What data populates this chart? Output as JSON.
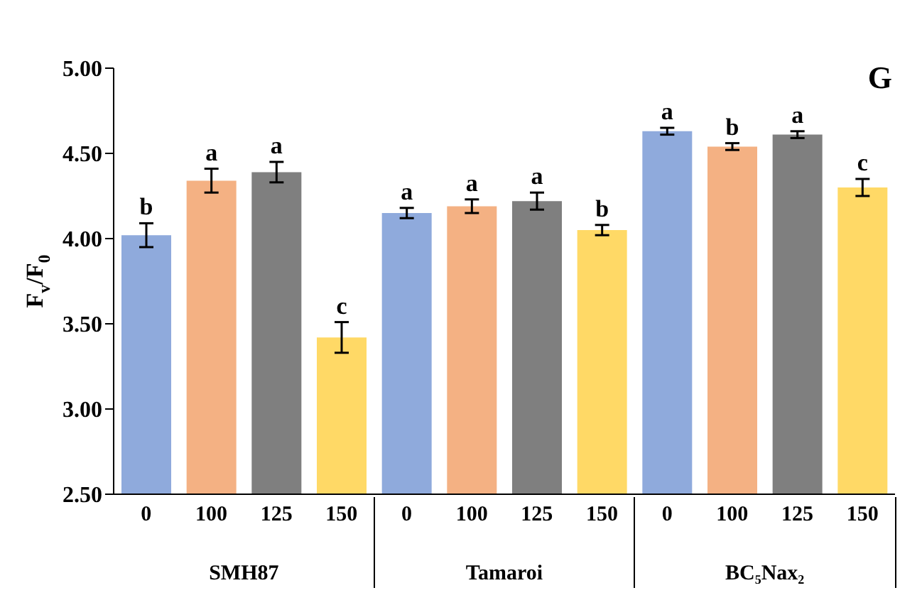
{
  "chart_data": {
    "type": "bar",
    "title": "G",
    "ylabel": "F$_{v}$/F$_{0}$",
    "categories": [
      "0",
      "100",
      "125",
      "150",
      "0",
      "100",
      "125",
      "150",
      "0",
      "100",
      "125",
      "150"
    ],
    "values": [
      4.02,
      4.34,
      4.39,
      3.42,
      4.15,
      4.19,
      4.22,
      4.05,
      4.63,
      4.54,
      4.61,
      4.3
    ],
    "errors": [
      0.07,
      0.07,
      0.06,
      0.09,
      0.03,
      0.04,
      0.05,
      0.03,
      0.02,
      0.02,
      0.02,
      0.05
    ],
    "colors": [
      "#8faadc",
      "#f4b183",
      "#7f7f7f",
      "#ffd966",
      "#8faadc",
      "#f4b183",
      "#7f7f7f",
      "#ffd966",
      "#8faadc",
      "#f4b183",
      "#7f7f7f",
      "#ffd966"
    ],
    "value_labels": [
      "b",
      "a",
      "a",
      "c",
      "a",
      "a",
      "a",
      "b",
      "a",
      "b",
      "a",
      "c"
    ],
    "annotations": [
      "SMH87",
      "Tamaroi",
      "BC₅Nax₂"
    ],
    "ylim": [
      2.5,
      5.0
    ],
    "yticks": [
      {
        "value": 2.5,
        "label": "2.50"
      },
      {
        "value": 3.0,
        "label": "3.00"
      },
      {
        "value": 3.5,
        "label": "3.50"
      },
      {
        "value": 4.0,
        "label": "4.00"
      },
      {
        "value": 4.5,
        "label": "4.50"
      },
      {
        "value": 5.0,
        "label": "5.00"
      }
    ],
    "grid": false,
    "legend": false
  }
}
